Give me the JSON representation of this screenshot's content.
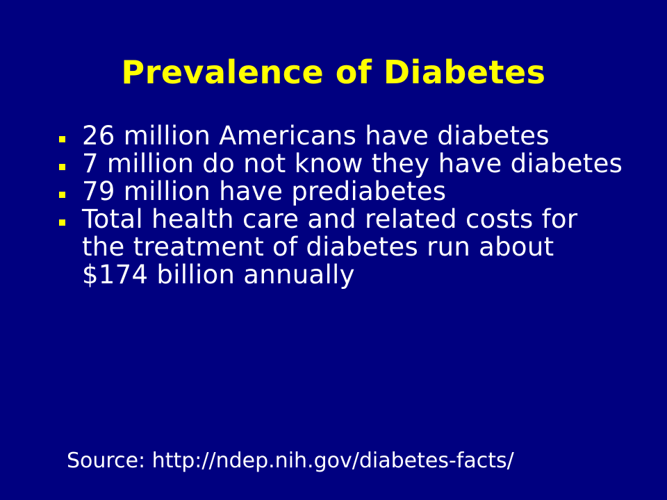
{
  "slide": {
    "title": "Prevalence of Diabetes",
    "bullets": [
      {
        "text": "26 million Americans have diabetes"
      },
      {
        "text": "7 million do not know they have diabetes"
      },
      {
        "text": "79 million have prediabetes"
      },
      {
        "text": "Total health care and related costs for the treatment of diabetes run about $174 billion annually"
      }
    ],
    "source": "Source: http://ndep.nih.gov/diabetes-facts/"
  },
  "colors": {
    "background": "#000080",
    "title": "#ffff00",
    "body_text": "#ffffff",
    "bullet_marker": "#ffff00"
  },
  "icons": {
    "bullet_marker": "square-bullet-icon"
  }
}
